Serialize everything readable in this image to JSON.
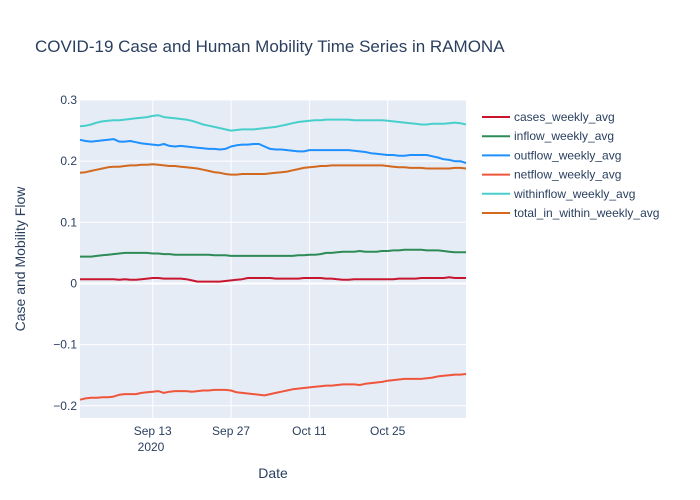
{
  "chart_data": {
    "type": "line",
    "title": "COVID-19 Case and Human Mobility Time Series in RAMONA",
    "xlabel": "Date",
    "ylabel": "Case and Mobility Flow",
    "x_year_label": "2020",
    "x_range": [
      "2020-08-31",
      "2020-11-08"
    ],
    "ylim": [
      -0.22,
      0.3
    ],
    "y_ticks": [
      {
        "value": 0.3,
        "label": "0.3"
      },
      {
        "value": 0.2,
        "label": "0.2"
      },
      {
        "value": 0.1,
        "label": "0.1"
      },
      {
        "value": 0,
        "label": "0"
      },
      {
        "value": -0.1,
        "label": "−0.1"
      },
      {
        "value": -0.2,
        "label": "−0.2"
      }
    ],
    "x_ticks": [
      {
        "value": "2020-09-13",
        "label": "Sep 13"
      },
      {
        "value": "2020-09-27",
        "label": "Sep 27"
      },
      {
        "value": "2020-10-11",
        "label": "Oct 11"
      },
      {
        "value": "2020-10-25",
        "label": "Oct 25"
      }
    ],
    "grid": true,
    "legend_position": "right",
    "plot_background": "#e5ecf6",
    "x": [
      "2020-08-31",
      "2020-09-01",
      "2020-09-02",
      "2020-09-03",
      "2020-09-04",
      "2020-09-05",
      "2020-09-06",
      "2020-09-07",
      "2020-09-08",
      "2020-09-09",
      "2020-09-10",
      "2020-09-11",
      "2020-09-12",
      "2020-09-13",
      "2020-09-14",
      "2020-09-15",
      "2020-09-16",
      "2020-09-17",
      "2020-09-18",
      "2020-09-19",
      "2020-09-20",
      "2020-09-21",
      "2020-09-22",
      "2020-09-23",
      "2020-09-24",
      "2020-09-25",
      "2020-09-26",
      "2020-09-27",
      "2020-09-28",
      "2020-09-29",
      "2020-09-30",
      "2020-10-01",
      "2020-10-02",
      "2020-10-03",
      "2020-10-04",
      "2020-10-05",
      "2020-10-06",
      "2020-10-07",
      "2020-10-08",
      "2020-10-09",
      "2020-10-10",
      "2020-10-11",
      "2020-10-12",
      "2020-10-13",
      "2020-10-14",
      "2020-10-15",
      "2020-10-16",
      "2020-10-17",
      "2020-10-18",
      "2020-10-19",
      "2020-10-20",
      "2020-10-21",
      "2020-10-22",
      "2020-10-23",
      "2020-10-24",
      "2020-10-25",
      "2020-10-26",
      "2020-10-27",
      "2020-10-28",
      "2020-10-29",
      "2020-10-30",
      "2020-10-31",
      "2020-11-01",
      "2020-11-02",
      "2020-11-03",
      "2020-11-04",
      "2020-11-05",
      "2020-11-06",
      "2020-11-07",
      "2020-11-08"
    ],
    "series": [
      {
        "name": "cases_weekly_avg",
        "color": "#c9162f",
        "values": [
          0.007,
          0.007,
          0.007,
          0.007,
          0.007,
          0.007,
          0.007,
          0.006,
          0.007,
          0.006,
          0.006,
          0.007,
          0.008,
          0.009,
          0.009,
          0.008,
          0.008,
          0.008,
          0.008,
          0.007,
          0.005,
          0.003,
          0.003,
          0.003,
          0.003,
          0.003,
          0.004,
          0.005,
          0.006,
          0.007,
          0.009,
          0.009,
          0.009,
          0.009,
          0.009,
          0.008,
          0.008,
          0.008,
          0.008,
          0.008,
          0.009,
          0.009,
          0.009,
          0.009,
          0.008,
          0.008,
          0.007,
          0.006,
          0.006,
          0.007,
          0.007,
          0.007,
          0.007,
          0.007,
          0.007,
          0.007,
          0.007,
          0.008,
          0.008,
          0.008,
          0.008,
          0.009,
          0.009,
          0.009,
          0.009,
          0.009,
          0.01,
          0.009,
          0.009,
          0.009
        ]
      },
      {
        "name": "inflow_weekly_avg",
        "color": "#2e8b57",
        "values": [
          0.044,
          0.044,
          0.044,
          0.045,
          0.046,
          0.047,
          0.048,
          0.049,
          0.05,
          0.05,
          0.05,
          0.05,
          0.05,
          0.049,
          0.049,
          0.048,
          0.048,
          0.047,
          0.047,
          0.047,
          0.047,
          0.047,
          0.047,
          0.047,
          0.046,
          0.046,
          0.046,
          0.045,
          0.045,
          0.045,
          0.045,
          0.045,
          0.045,
          0.045,
          0.045,
          0.045,
          0.045,
          0.045,
          0.045,
          0.046,
          0.046,
          0.047,
          0.047,
          0.048,
          0.05,
          0.05,
          0.051,
          0.052,
          0.052,
          0.052,
          0.053,
          0.052,
          0.052,
          0.052,
          0.053,
          0.053,
          0.054,
          0.054,
          0.055,
          0.055,
          0.055,
          0.055,
          0.054,
          0.054,
          0.054,
          0.053,
          0.052,
          0.051,
          0.051,
          0.051
        ]
      },
      {
        "name": "outflow_weekly_avg",
        "color": "#1e90ff",
        "values": [
          0.235,
          0.233,
          0.232,
          0.233,
          0.234,
          0.235,
          0.236,
          0.232,
          0.232,
          0.233,
          0.231,
          0.229,
          0.228,
          0.227,
          0.226,
          0.228,
          0.225,
          0.224,
          0.225,
          0.224,
          0.223,
          0.222,
          0.221,
          0.22,
          0.22,
          0.219,
          0.22,
          0.224,
          0.226,
          0.227,
          0.227,
          0.228,
          0.228,
          0.224,
          0.22,
          0.219,
          0.219,
          0.218,
          0.217,
          0.216,
          0.216,
          0.218,
          0.218,
          0.218,
          0.218,
          0.218,
          0.218,
          0.218,
          0.218,
          0.217,
          0.216,
          0.215,
          0.213,
          0.212,
          0.211,
          0.21,
          0.21,
          0.209,
          0.209,
          0.21,
          0.21,
          0.21,
          0.21,
          0.208,
          0.206,
          0.203,
          0.202,
          0.2,
          0.2,
          0.197
        ]
      },
      {
        "name": "netflow_weekly_avg",
        "color": "#ef553b",
        "values": [
          -0.19,
          -0.188,
          -0.187,
          -0.187,
          -0.186,
          -0.186,
          -0.185,
          -0.182,
          -0.181,
          -0.181,
          -0.181,
          -0.179,
          -0.178,
          -0.177,
          -0.176,
          -0.179,
          -0.177,
          -0.176,
          -0.176,
          -0.176,
          -0.177,
          -0.176,
          -0.175,
          -0.175,
          -0.174,
          -0.174,
          -0.174,
          -0.175,
          -0.178,
          -0.179,
          -0.18,
          -0.181,
          -0.182,
          -0.183,
          -0.181,
          -0.179,
          -0.177,
          -0.175,
          -0.173,
          -0.172,
          -0.171,
          -0.17,
          -0.169,
          -0.168,
          -0.167,
          -0.167,
          -0.166,
          -0.165,
          -0.165,
          -0.165,
          -0.166,
          -0.164,
          -0.163,
          -0.162,
          -0.161,
          -0.159,
          -0.158,
          -0.157,
          -0.156,
          -0.156,
          -0.156,
          -0.156,
          -0.155,
          -0.154,
          -0.152,
          -0.151,
          -0.15,
          -0.149,
          -0.149,
          -0.148
        ]
      },
      {
        "name": "withinflow_weekly_avg",
        "color": "#48cfcb",
        "values": [
          0.257,
          0.258,
          0.26,
          0.263,
          0.265,
          0.266,
          0.267,
          0.267,
          0.268,
          0.269,
          0.27,
          0.271,
          0.272,
          0.274,
          0.275,
          0.272,
          0.271,
          0.27,
          0.269,
          0.268,
          0.266,
          0.263,
          0.26,
          0.258,
          0.256,
          0.254,
          0.252,
          0.25,
          0.251,
          0.252,
          0.252,
          0.252,
          0.253,
          0.254,
          0.255,
          0.256,
          0.258,
          0.26,
          0.262,
          0.264,
          0.265,
          0.266,
          0.267,
          0.267,
          0.268,
          0.268,
          0.268,
          0.268,
          0.268,
          0.267,
          0.267,
          0.267,
          0.267,
          0.267,
          0.267,
          0.266,
          0.265,
          0.264,
          0.263,
          0.262,
          0.261,
          0.26,
          0.26,
          0.261,
          0.261,
          0.261,
          0.262,
          0.263,
          0.262,
          0.26
        ]
      },
      {
        "name": "total_in_within_weekly_avg",
        "color": "#d2691e",
        "values": [
          0.181,
          0.182,
          0.184,
          0.186,
          0.188,
          0.19,
          0.191,
          0.191,
          0.192,
          0.193,
          0.193,
          0.194,
          0.194,
          0.195,
          0.194,
          0.193,
          0.192,
          0.192,
          0.191,
          0.19,
          0.189,
          0.188,
          0.186,
          0.184,
          0.182,
          0.181,
          0.179,
          0.178,
          0.178,
          0.179,
          0.179,
          0.179,
          0.179,
          0.179,
          0.18,
          0.181,
          0.182,
          0.183,
          0.185,
          0.187,
          0.189,
          0.19,
          0.191,
          0.192,
          0.192,
          0.193,
          0.193,
          0.193,
          0.193,
          0.193,
          0.193,
          0.193,
          0.193,
          0.193,
          0.193,
          0.192,
          0.191,
          0.19,
          0.19,
          0.189,
          0.189,
          0.189,
          0.188,
          0.188,
          0.188,
          0.188,
          0.188,
          0.189,
          0.189,
          0.188
        ]
      }
    ]
  }
}
